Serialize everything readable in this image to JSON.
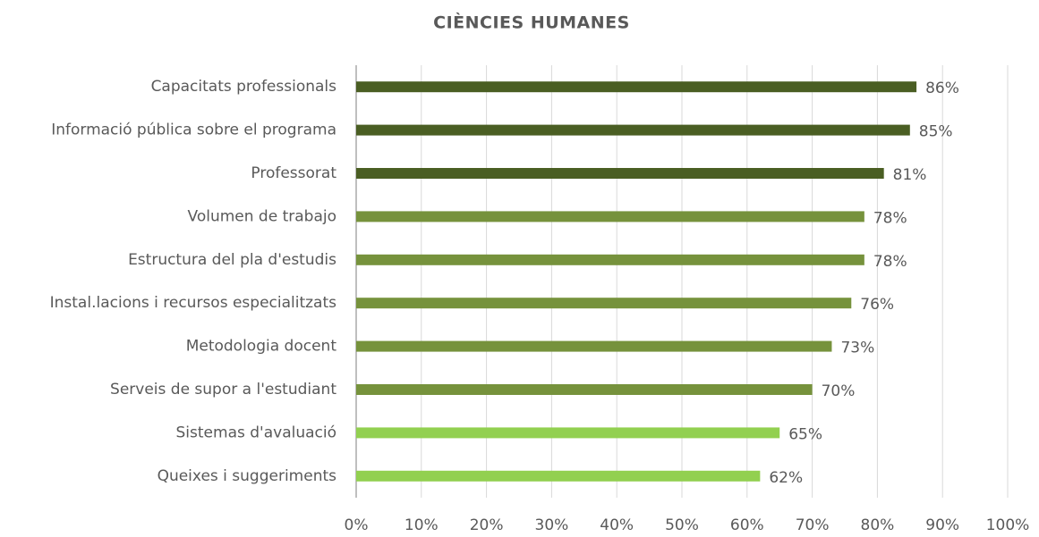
{
  "chart_data": {
    "type": "hbar",
    "title": "CIÈNCIES HUMANES",
    "categories": [
      "Capacitats professionals",
      "Informació pública sobre el programa",
      "Professorat",
      "Volumen de trabajo",
      "Estructura del pla d'estudis",
      "Instal.lacions i recursos especialitzats",
      "Metodologia docent",
      "Serveis de supor a l'estudiant",
      "Sistemas d'avaluació",
      "Queixes i suggeriments"
    ],
    "values": [
      86,
      85,
      81,
      78,
      78,
      76,
      73,
      70,
      65,
      62
    ],
    "value_labels": [
      "86%",
      "85%",
      "81%",
      "78%",
      "78%",
      "76%",
      "73%",
      "70%",
      "65%",
      "62%"
    ],
    "colors": [
      "#4a5e23",
      "#4a5e23",
      "#4a5e23",
      "#76923c",
      "#76923c",
      "#76923c",
      "#76923c",
      "#76923c",
      "#92d050",
      "#92d050"
    ],
    "xlim": [
      0,
      100
    ],
    "xticks": [
      {
        "value": 0,
        "label": "0%"
      },
      {
        "value": 10,
        "label": "10%"
      },
      {
        "value": 20,
        "label": "20%"
      },
      {
        "value": 30,
        "label": "30%"
      },
      {
        "value": 40,
        "label": "40%"
      },
      {
        "value": 50,
        "label": "50%"
      },
      {
        "value": 60,
        "label": "60%"
      },
      {
        "value": 70,
        "label": "70%"
      },
      {
        "value": 80,
        "label": "80%"
      },
      {
        "value": 90,
        "label": "90%"
      },
      {
        "value": 100,
        "label": "100%"
      }
    ],
    "grid": true
  }
}
